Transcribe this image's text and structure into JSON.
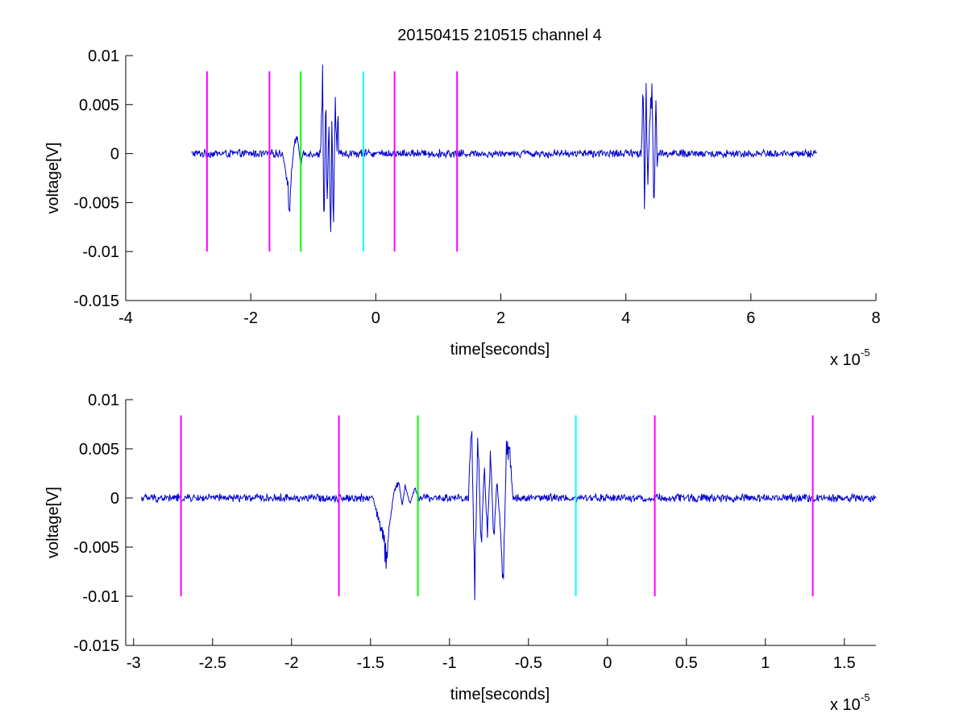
{
  "figure": {
    "title": "20150415 210515 channel 4",
    "background": "#ffffff"
  },
  "chart_data": [
    {
      "type": "line",
      "title": "20150415 210515 channel 4",
      "xlabel": "time[seconds]",
      "ylabel": "voltage[V]",
      "x_exponent_label": "x 10",
      "x_exponent": "-5",
      "xlim": [
        -4,
        8
      ],
      "ylim": [
        -0.015,
        0.01
      ],
      "x_ticks": [
        -4,
        -2,
        0,
        2,
        4,
        6,
        8
      ],
      "x_tick_labels": [
        "-4",
        "-2",
        "0",
        "2",
        "4",
        "6",
        "8"
      ],
      "y_ticks": [
        -0.015,
        -0.01,
        -0.005,
        0,
        0.005,
        0.01
      ],
      "y_tick_labels": [
        "-0.015",
        "-0.01",
        "-0.005",
        "0",
        "0.005",
        "0.01"
      ],
      "grid": false,
      "signal": {
        "color": "#0000cc",
        "x_range": [
          -2.95,
          7.05
        ],
        "noise_amplitude": 0.0004,
        "bursts": [
          {
            "x": [
              -1.5,
              -1.45,
              -1.4,
              -1.38,
              -1.35,
              -1.3,
              -1.25,
              -1.2,
              -1.15
            ],
            "y": [
              0.0003,
              -0.0015,
              -0.0038,
              -0.0064,
              -0.002,
              0.0012,
              0.0016,
              -0.0012,
              0.0005
            ]
          },
          {
            "x": [
              -0.88,
              -0.85,
              -0.83,
              -0.8,
              -0.78,
              -0.75,
              -0.72,
              -0.7,
              -0.68,
              -0.65,
              -0.62,
              -0.6
            ],
            "y": [
              0.0008,
              0.0074,
              -0.0091,
              0.0066,
              -0.0058,
              0.0035,
              -0.0089,
              0.005,
              -0.0091,
              0.0053,
              0.0002,
              0.0055
            ]
          },
          {
            "x": [
              4.25,
              4.28,
              4.3,
              4.32,
              4.35,
              4.38,
              4.42,
              4.45,
              4.48,
              4.5,
              4.52
            ],
            "y": [
              0.0005,
              0.0078,
              -0.0074,
              0.0076,
              -0.003,
              0.0028,
              0.0072,
              -0.007,
              0.0062,
              -0.0015,
              0.0003
            ]
          }
        ]
      },
      "markers": [
        {
          "x": -2.7,
          "color": "#ff00ff"
        },
        {
          "x": -1.7,
          "color": "#ff00ff"
        },
        {
          "x": -1.2,
          "color": "#00ff00"
        },
        {
          "x": -0.2,
          "color": "#00ffff"
        },
        {
          "x": 0.3,
          "color": "#ff00ff"
        },
        {
          "x": 1.3,
          "color": "#ff00ff"
        }
      ],
      "marker_y_range": [
        -0.01,
        0.0084
      ]
    },
    {
      "type": "line",
      "xlabel": "time[seconds]",
      "ylabel": "voltage[V]",
      "x_exponent_label": "x 10",
      "x_exponent": "-5",
      "xlim": [
        -3.05,
        1.7
      ],
      "ylim": [
        -0.015,
        0.01
      ],
      "x_ticks": [
        -3,
        -2.5,
        -2,
        -1.5,
        -1,
        -0.5,
        0,
        0.5,
        1,
        1.5
      ],
      "x_tick_labels": [
        "-3",
        "-2.5",
        "-2",
        "-1.5",
        "-1",
        "-0.5",
        "0",
        "0.5",
        "1",
        "1.5"
      ],
      "y_ticks": [
        -0.015,
        -0.01,
        -0.005,
        0,
        0.005,
        0.01
      ],
      "y_tick_labels": [
        "-0.015",
        "-0.01",
        "-0.005",
        "0",
        "0.005",
        "0.01"
      ],
      "grid": false,
      "signal": {
        "color": "#0000cc",
        "x_range": [
          -2.95,
          1.7
        ],
        "noise_amplitude": 0.0004,
        "bursts": [
          {
            "x": [
              -1.48,
              -1.45,
              -1.42,
              -1.4,
              -1.38,
              -1.35,
              -1.32,
              -1.3,
              -1.28,
              -1.25,
              -1.22,
              -1.2
            ],
            "y": [
              -0.0003,
              -0.0022,
              -0.0038,
              -0.0064,
              -0.0028,
              0.0008,
              0.0016,
              -0.0008,
              0.0012,
              -0.0006,
              0.001,
              0.0002
            ]
          },
          {
            "x": [
              -0.88,
              -0.86,
              -0.84,
              -0.82,
              -0.8,
              -0.78,
              -0.76,
              -0.74,
              -0.72,
              -0.7,
              -0.68,
              -0.66,
              -0.64,
              -0.62,
              -0.6
            ],
            "y": [
              0.001,
              0.0074,
              -0.0091,
              0.0068,
              -0.0052,
              0.0032,
              -0.0038,
              0.0046,
              -0.0045,
              0.0018,
              -0.0025,
              -0.0091,
              0.0048,
              0.0053,
              0.0004
            ]
          }
        ]
      },
      "markers": [
        {
          "x": -2.7,
          "color": "#ff00ff"
        },
        {
          "x": -1.7,
          "color": "#ff00ff"
        },
        {
          "x": -1.2,
          "color": "#00ff00"
        },
        {
          "x": -0.2,
          "color": "#00ffff"
        },
        {
          "x": 0.3,
          "color": "#ff00ff"
        },
        {
          "x": 1.3,
          "color": "#ff00ff"
        }
      ],
      "marker_y_range": [
        -0.01,
        0.0084
      ]
    }
  ]
}
